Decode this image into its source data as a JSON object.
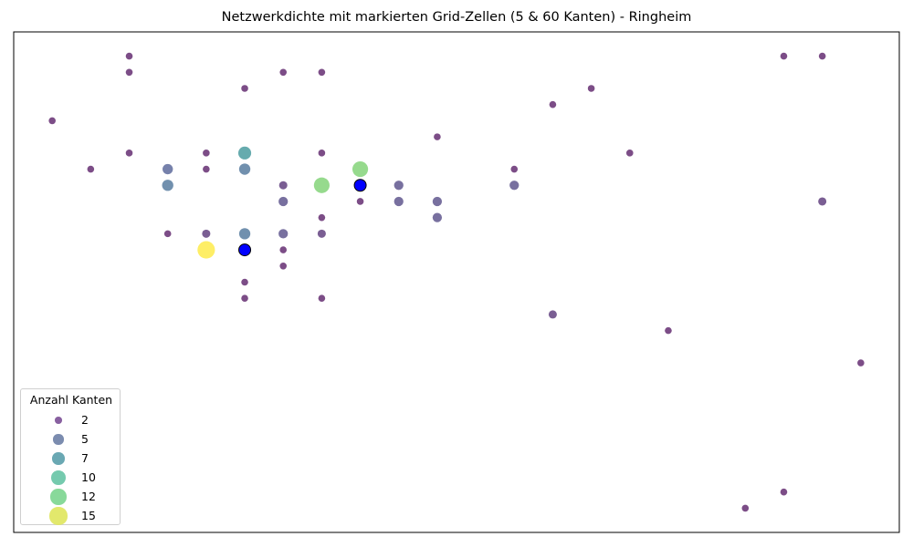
{
  "chart_data": {
    "type": "scatter",
    "title": "Netzwerkdichte mit markierten Grid-Zellen (5 & 60 Kanten) - Ringheim",
    "xlabel": "",
    "ylabel": "",
    "axes_visible": false,
    "xlim": [
      0,
      23
    ],
    "ylim": [
      0,
      31
    ],
    "size_legend": {
      "title": "Anzahl Kanten",
      "placement": "lower-left",
      "entries": [
        {
          "label": "2",
          "value": 2,
          "color": "#7b4f96"
        },
        {
          "label": "5",
          "value": 5,
          "color": "#6d7fa6"
        },
        {
          "label": "7",
          "value": 7,
          "color": "#5a9eab"
        },
        {
          "label": "10",
          "value": 10,
          "color": "#66c4a5"
        },
        {
          "label": "12",
          "value": 12,
          "color": "#7bd58f"
        },
        {
          "label": "15",
          "value": 15,
          "color": "#dfe65c"
        }
      ]
    },
    "colormap": "viridis",
    "highlight_color": "#0000ff",
    "points": [
      {
        "x": 3,
        "y": 29.5,
        "edges": 2
      },
      {
        "x": 3,
        "y": 28.5,
        "edges": 2
      },
      {
        "x": 7,
        "y": 28.5,
        "edges": 2
      },
      {
        "x": 8,
        "y": 28.5,
        "edges": 2
      },
      {
        "x": 6,
        "y": 27.5,
        "edges": 2
      },
      {
        "x": 20,
        "y": 29.5,
        "edges": 2
      },
      {
        "x": 21,
        "y": 29.5,
        "edges": 2
      },
      {
        "x": 15,
        "y": 27.5,
        "edges": 2
      },
      {
        "x": 14,
        "y": 26.5,
        "edges": 2
      },
      {
        "x": 1,
        "y": 25.5,
        "edges": 2
      },
      {
        "x": 11,
        "y": 24.5,
        "edges": 2
      },
      {
        "x": 3,
        "y": 23.5,
        "edges": 2
      },
      {
        "x": 5,
        "y": 23.5,
        "edges": 2
      },
      {
        "x": 6,
        "y": 23.5,
        "edges": 8
      },
      {
        "x": 8,
        "y": 23.5,
        "edges": 2
      },
      {
        "x": 16,
        "y": 23.5,
        "edges": 2
      },
      {
        "x": 2,
        "y": 22.5,
        "edges": 2
      },
      {
        "x": 4,
        "y": 22.5,
        "edges": 5
      },
      {
        "x": 5,
        "y": 22.5,
        "edges": 2
      },
      {
        "x": 6,
        "y": 22.5,
        "edges": 6
      },
      {
        "x": 9,
        "y": 22.5,
        "edges": 12
      },
      {
        "x": 13,
        "y": 22.5,
        "edges": 2
      },
      {
        "x": 4,
        "y": 21.5,
        "edges": 6
      },
      {
        "x": 7,
        "y": 21.5,
        "edges": 3
      },
      {
        "x": 8,
        "y": 21.5,
        "edges": 12
      },
      {
        "x": 9,
        "y": 21.5,
        "edges": 5,
        "highlighted": true
      },
      {
        "x": 10,
        "y": 21.5,
        "edges": 4
      },
      {
        "x": 13,
        "y": 21.5,
        "edges": 4
      },
      {
        "x": 7,
        "y": 20.5,
        "edges": 4
      },
      {
        "x": 9,
        "y": 20.5,
        "edges": 2
      },
      {
        "x": 10,
        "y": 20.5,
        "edges": 4
      },
      {
        "x": 11,
        "y": 20.5,
        "edges": 4
      },
      {
        "x": 21,
        "y": 20.5,
        "edges": 3
      },
      {
        "x": 8,
        "y": 19.5,
        "edges": 2
      },
      {
        "x": 11,
        "y": 19.5,
        "edges": 4
      },
      {
        "x": 4,
        "y": 18.5,
        "edges": 2
      },
      {
        "x": 5,
        "y": 18.5,
        "edges": 3
      },
      {
        "x": 6,
        "y": 18.5,
        "edges": 6
      },
      {
        "x": 7,
        "y": 18.5,
        "edges": 4
      },
      {
        "x": 8,
        "y": 18.5,
        "edges": 3
      },
      {
        "x": 5,
        "y": 17.5,
        "edges": 15
      },
      {
        "x": 6,
        "y": 17.5,
        "edges": 60,
        "highlighted": true
      },
      {
        "x": 7,
        "y": 17.5,
        "edges": 2
      },
      {
        "x": 7,
        "y": 16.5,
        "edges": 2
      },
      {
        "x": 6,
        "y": 15.5,
        "edges": 2
      },
      {
        "x": 6,
        "y": 14.5,
        "edges": 2
      },
      {
        "x": 8,
        "y": 14.5,
        "edges": 2
      },
      {
        "x": 14,
        "y": 13.5,
        "edges": 3
      },
      {
        "x": 17,
        "y": 12.5,
        "edges": 2
      },
      {
        "x": 22,
        "y": 10.5,
        "edges": 2
      },
      {
        "x": 20,
        "y": 2.5,
        "edges": 2
      },
      {
        "x": 19,
        "y": 1.5,
        "edges": 2
      }
    ]
  }
}
